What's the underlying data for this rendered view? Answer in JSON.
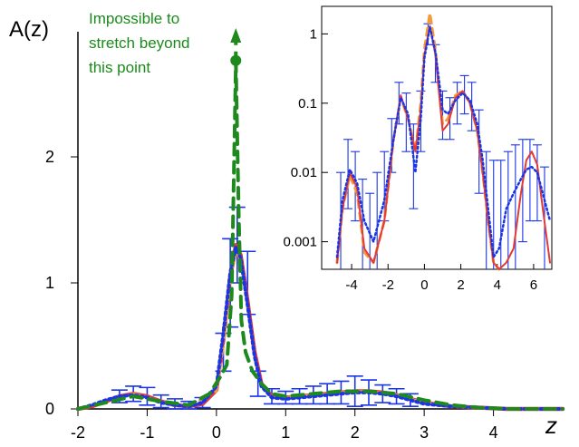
{
  "chart_data": [
    {
      "type": "line",
      "ylabel": "A(z)",
      "xlabel": "z",
      "xlim": [
        -2,
        5
      ],
      "ylim": [
        0,
        3.0
      ],
      "x_ticks": [
        "-2",
        "-1",
        "0",
        "1",
        "2",
        "3",
        "4"
      ],
      "y_ticks": [
        "0",
        "1",
        "2"
      ],
      "annotation": [
        "Impossible to",
        "stretch beyond",
        "this point"
      ],
      "series": [
        {
          "style": "red solid",
          "color": "#e23a3a",
          "x": [
            -2,
            -1.8,
            -1.6,
            -1.4,
            -1.2,
            -1.0,
            -0.8,
            -0.6,
            -0.4,
            -0.2,
            0,
            0.1,
            0.2,
            0.28,
            0.35,
            0.45,
            0.55,
            0.65,
            0.8,
            1.0,
            1.2,
            1.4,
            1.6,
            1.8,
            2.0,
            2.2,
            2.4,
            2.6,
            2.8,
            3.0,
            3.4,
            3.8,
            4.2,
            5
          ],
          "y": [
            0.0,
            0.02,
            0.06,
            0.1,
            0.12,
            0.1,
            0.06,
            0.03,
            0.02,
            0.04,
            0.15,
            0.55,
            1.05,
            1.3,
            1.22,
            0.85,
            0.45,
            0.2,
            0.1,
            0.09,
            0.1,
            0.11,
            0.12,
            0.13,
            0.14,
            0.14,
            0.13,
            0.11,
            0.08,
            0.05,
            0.02,
            0.01,
            0.0,
            0.0
          ]
        },
        {
          "style": "blue dotted",
          "color": "#1a35e6",
          "x": [
            -2,
            -1.8,
            -1.6,
            -1.4,
            -1.2,
            -1.0,
            -0.8,
            -0.6,
            -0.4,
            -0.2,
            0,
            0.1,
            0.2,
            0.28,
            0.35,
            0.45,
            0.55,
            0.65,
            0.8,
            1.0,
            1.2,
            1.4,
            1.6,
            1.8,
            2.0,
            2.2,
            2.4,
            2.6,
            2.8,
            3.0,
            3.4,
            3.8,
            4.2,
            5
          ],
          "y": [
            0.0,
            0.03,
            0.07,
            0.1,
            0.11,
            0.09,
            0.05,
            0.03,
            0.02,
            0.05,
            0.18,
            0.6,
            1.08,
            1.28,
            1.2,
            0.82,
            0.42,
            0.18,
            0.09,
            0.08,
            0.09,
            0.1,
            0.11,
            0.12,
            0.13,
            0.13,
            0.12,
            0.1,
            0.07,
            0.04,
            0.02,
            0.01,
            0.0,
            0.0
          ]
        },
        {
          "style": "orange dashed",
          "color": "#f39a3c",
          "x": [
            -2,
            -1.6,
            -1.2,
            -0.8,
            -0.4,
            0,
            0.1,
            0.2,
            0.28,
            0.35,
            0.45,
            0.55,
            0.65,
            0.8,
            1.0,
            1.4,
            1.8,
            2.2,
            2.6,
            3.0,
            3.4,
            3.8,
            4.2,
            5
          ],
          "y": [
            0.0,
            0.06,
            0.12,
            0.06,
            0.02,
            0.14,
            0.5,
            1.0,
            1.25,
            1.18,
            0.8,
            0.4,
            0.18,
            0.09,
            0.09,
            0.11,
            0.13,
            0.14,
            0.11,
            0.05,
            0.02,
            0.01,
            0.0,
            0.0
          ]
        },
        {
          "style": "green dashed",
          "color": "#1e8a1e",
          "x": [
            -2,
            -1.6,
            -1.2,
            -0.8,
            -0.4,
            -0.1,
            0.05,
            0.15,
            0.22,
            0.28,
            0.32,
            0.36,
            0.42,
            0.52,
            0.65,
            0.8,
            1.0,
            1.4,
            1.8,
            2.2,
            2.6,
            3.0,
            3.4,
            3.8,
            4.2,
            5
          ],
          "y": [
            0.0,
            0.05,
            0.1,
            0.06,
            0.03,
            0.12,
            0.25,
            0.35,
            0.9,
            2.75,
            1.6,
            0.7,
            0.45,
            0.3,
            0.2,
            0.12,
            0.1,
            0.12,
            0.14,
            0.14,
            0.12,
            0.07,
            0.03,
            0.01,
            0.0,
            0.0
          ]
        }
      ],
      "error_bars": {
        "color": "#1a35e6",
        "x": [
          -1.4,
          -1.2,
          -1.0,
          -0.8,
          -0.6,
          -0.4,
          -0.2,
          0.1,
          0.2,
          0.3,
          0.45,
          0.6,
          0.8,
          1.0,
          1.2,
          1.4,
          1.6,
          1.8,
          2.0,
          2.2,
          2.4,
          2.6,
          2.8
        ],
        "y": [
          0.1,
          0.12,
          0.1,
          0.06,
          0.04,
          0.03,
          0.05,
          0.45,
          1.0,
          1.3,
          1.0,
          0.2,
          0.1,
          0.09,
          0.1,
          0.11,
          0.12,
          0.13,
          0.14,
          0.13,
          0.12,
          0.1,
          0.07
        ],
        "err": [
          0.05,
          0.06,
          0.07,
          0.05,
          0.04,
          0.03,
          0.04,
          0.15,
          0.35,
          0.3,
          0.25,
          0.1,
          0.06,
          0.05,
          0.06,
          0.07,
          0.08,
          0.09,
          0.12,
          0.1,
          0.07,
          0.06,
          0.05
        ]
      }
    },
    {
      "type": "line",
      "yscale": "log",
      "xlim": [
        -5,
        7
      ],
      "ylim": [
        0.0004,
        2.5
      ],
      "x_ticks": [
        "-4",
        "-2",
        "0",
        "2",
        "4",
        "6"
      ],
      "y_ticks": [
        "0.001",
        "0.01",
        "0.1",
        "1"
      ],
      "series": [
        {
          "style": "red solid",
          "color": "#e23a3a",
          "x": [
            -4.8,
            -4.5,
            -4.1,
            -3.7,
            -3.3,
            -2.8,
            -2.2,
            -1.7,
            -1.3,
            -0.9,
            -0.5,
            -0.2,
            0.0,
            0.3,
            0.6,
            1.0,
            1.3,
            1.7,
            2.1,
            2.5,
            2.9,
            3.2,
            3.5,
            3.8,
            4.1,
            4.5,
            4.9,
            5.3,
            5.6,
            5.9,
            6.2,
            6.5,
            6.9
          ],
          "y": [
            0.0005,
            0.003,
            0.01,
            0.006,
            0.0008,
            0.0005,
            0.002,
            0.03,
            0.13,
            0.06,
            0.02,
            0.08,
            0.5,
            1.3,
            0.5,
            0.04,
            0.05,
            0.12,
            0.15,
            0.1,
            0.04,
            0.01,
            0.002,
            0.0005,
            0.0004,
            0.0005,
            0.0008,
            0.005,
            0.015,
            0.02,
            0.013,
            0.003,
            0.0005
          ]
        },
        {
          "style": "blue dotted",
          "color": "#1a35e6",
          "x": [
            -4.8,
            -4.5,
            -4.1,
            -3.7,
            -3.3,
            -2.8,
            -2.2,
            -1.7,
            -1.3,
            -0.9,
            -0.5,
            -0.2,
            0.0,
            0.3,
            0.6,
            1.0,
            1.3,
            1.7,
            2.1,
            2.5,
            2.9,
            3.2,
            3.5,
            3.8,
            4.1,
            4.5,
            4.9,
            5.3,
            5.6,
            5.9,
            6.2,
            6.5,
            6.9
          ],
          "y": [
            0.0006,
            0.004,
            0.011,
            0.007,
            0.002,
            0.001,
            0.004,
            0.03,
            0.12,
            0.07,
            0.01,
            0.06,
            0.45,
            1.25,
            0.55,
            0.08,
            0.07,
            0.11,
            0.14,
            0.11,
            0.05,
            0.015,
            0.003,
            0.0006,
            0.0008,
            0.003,
            0.005,
            0.008,
            0.011,
            0.012,
            0.01,
            0.005,
            0.002
          ]
        },
        {
          "style": "orange dashed",
          "color": "#f39a3c",
          "x": [
            -4.8,
            -4.5,
            -4.1,
            -3.7,
            -3.3,
            -2.8,
            -2.2,
            -1.7,
            -1.3,
            -0.9,
            -0.5,
            -0.2,
            0.0,
            0.3,
            0.6,
            1.0,
            1.3,
            1.7,
            2.1,
            2.5,
            2.9,
            3.2,
            3.5,
            3.8,
            4.1
          ],
          "y": [
            0.0005,
            0.003,
            0.009,
            0.005,
            0.0007,
            0.0005,
            0.002,
            0.03,
            0.12,
            0.06,
            0.02,
            0.1,
            0.6,
            2.0,
            0.6,
            0.05,
            0.06,
            0.13,
            0.15,
            0.1,
            0.04,
            0.01,
            0.002,
            0.0005,
            0.0004
          ]
        }
      ],
      "error_bars": {
        "color": "#1a35e6",
        "x": [
          -4.6,
          -4.2,
          -3.8,
          -3.4,
          -3.0,
          -2.6,
          -2.2,
          -1.8,
          -1.4,
          -1.0,
          -0.6,
          -0.2,
          0.2,
          0.6,
          1.0,
          1.4,
          1.8,
          2.2,
          2.6,
          3.0,
          3.4,
          3.8,
          4.2,
          4.6,
          5.0,
          5.4,
          5.8,
          6.2,
          6.6
        ],
        "y": [
          0.003,
          0.01,
          0.007,
          0.002,
          0.001,
          0.003,
          0.008,
          0.03,
          0.12,
          0.07,
          0.015,
          0.08,
          1.1,
          0.4,
          0.08,
          0.07,
          0.11,
          0.14,
          0.1,
          0.03,
          0.005,
          0.003,
          0.004,
          0.006,
          0.008,
          0.01,
          0.012,
          0.01,
          0.004
        ],
        "lo": [
          0.0004,
          0.003,
          0.002,
          0.0004,
          0.0004,
          0.0004,
          0.002,
          0.01,
          0.05,
          0.02,
          0.003,
          0.02,
          0.7,
          0.2,
          0.03,
          0.03,
          0.05,
          0.07,
          0.04,
          0.005,
          0.0004,
          0.0004,
          0.0004,
          0.0004,
          0.0004,
          0.001,
          0.002,
          0.002,
          0.0004
        ],
        "hi": [
          0.01,
          0.03,
          0.02,
          0.008,
          0.005,
          0.01,
          0.02,
          0.06,
          0.2,
          0.14,
          0.05,
          0.15,
          1.4,
          0.7,
          0.15,
          0.12,
          0.2,
          0.25,
          0.2,
          0.08,
          0.02,
          0.015,
          0.015,
          0.02,
          0.025,
          0.03,
          0.03,
          0.025,
          0.012
        ]
      }
    }
  ]
}
